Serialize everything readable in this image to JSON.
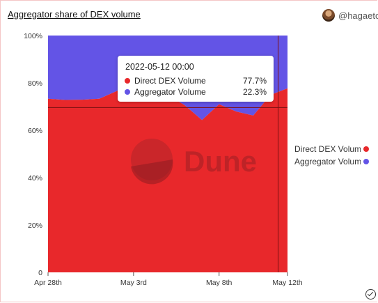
{
  "title": "Aggregator share of DEX volume",
  "author": "@hagaetc",
  "chart_data": {
    "type": "area",
    "stacked": true,
    "x": [
      "2022-04-28",
      "2022-04-29",
      "2022-04-30",
      "2022-05-01",
      "2022-05-02",
      "2022-05-03",
      "2022-05-04",
      "2022-05-05",
      "2022-05-06",
      "2022-05-07",
      "2022-05-08",
      "2022-05-09",
      "2022-05-10",
      "2022-05-11",
      "2022-05-12"
    ],
    "series": [
      {
        "name": "Direct DEX Volume",
        "color": "#e8282b",
        "values": [
          73.3,
          72.8,
          72.9,
          73.3,
          76.5,
          79.8,
          77.5,
          75.0,
          70.5,
          64.3,
          71.0,
          67.9,
          66.2,
          74.9,
          77.7
        ]
      },
      {
        "name": "Aggregator Volume",
        "color": "#6354e6",
        "values": [
          26.7,
          27.2,
          27.1,
          26.7,
          23.5,
          20.2,
          22.5,
          25.0,
          29.5,
          35.7,
          29.0,
          32.1,
          33.8,
          25.1,
          22.3
        ]
      }
    ],
    "x_ticks": [
      "Apr 28th",
      "May 3rd",
      "May 8th",
      "May 12th"
    ],
    "y_ticks": [
      "0",
      "20%",
      "40%",
      "60%",
      "80%",
      "100%"
    ],
    "ylim": [
      0,
      100
    ],
    "legend_position": "right",
    "tooltip": {
      "date": "2022-05-12 00:00",
      "rows": [
        {
          "name": "Direct DEX Volume",
          "value": "77.7%"
        },
        {
          "name": "Aggregator Volume",
          "value": "22.3%"
        }
      ]
    },
    "watermark": "Dune",
    "crosshair_value": 69.6
  }
}
